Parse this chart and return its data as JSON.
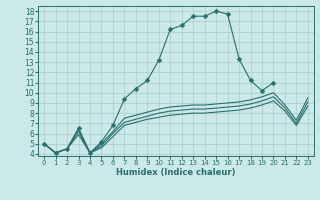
{
  "xlabel": "Humidex (Indice chaleur)",
  "background_color": "#cce9e9",
  "grid_color": "#aacccc",
  "line_color": "#2a6e6e",
  "xlim": [
    -0.5,
    23.5
  ],
  "ylim": [
    3.8,
    18.5
  ],
  "xticks": [
    0,
    1,
    2,
    3,
    4,
    5,
    6,
    7,
    8,
    9,
    10,
    11,
    12,
    13,
    14,
    15,
    16,
    17,
    18,
    19,
    20,
    21,
    22,
    23
  ],
  "yticks": [
    4,
    5,
    6,
    7,
    8,
    9,
    10,
    11,
    12,
    13,
    14,
    15,
    16,
    17,
    18
  ],
  "main_line": {
    "x": [
      0,
      1,
      2,
      3,
      4,
      5,
      6,
      7,
      8,
      9,
      10,
      11,
      12,
      13,
      14,
      15,
      16,
      17,
      18,
      19,
      20,
      21,
      22,
      23
    ],
    "y": [
      5.0,
      4.1,
      4.5,
      6.5,
      4.1,
      5.2,
      6.8,
      9.4,
      10.4,
      11.2,
      13.2,
      16.2,
      16.6,
      17.5,
      17.5,
      18.0,
      17.7,
      13.3,
      11.2,
      10.2,
      11.0,
      null,
      null,
      null
    ]
  },
  "flat_lines": [
    {
      "x": [
        0,
        1,
        2,
        3,
        4,
        5,
        6,
        7,
        8,
        9,
        10,
        11,
        12,
        13,
        14,
        15,
        16,
        17,
        18,
        19,
        20,
        21,
        22,
        23
      ],
      "y": [
        5.0,
        4.1,
        4.5,
        6.5,
        4.1,
        5.0,
        6.2,
        7.5,
        7.8,
        8.1,
        8.4,
        8.6,
        8.7,
        8.8,
        8.8,
        8.9,
        9.0,
        9.1,
        9.3,
        9.6,
        10.0,
        8.8,
        7.3,
        9.5
      ]
    },
    {
      "x": [
        0,
        1,
        2,
        3,
        4,
        5,
        6,
        7,
        8,
        9,
        10,
        11,
        12,
        13,
        14,
        15,
        16,
        17,
        18,
        19,
        20,
        21,
        22,
        23
      ],
      "y": [
        5.0,
        4.1,
        4.5,
        6.2,
        4.1,
        4.8,
        6.0,
        7.1,
        7.4,
        7.7,
        8.0,
        8.2,
        8.3,
        8.4,
        8.4,
        8.5,
        8.6,
        8.7,
        8.9,
        9.2,
        9.6,
        8.5,
        7.0,
        9.1
      ]
    },
    {
      "x": [
        0,
        1,
        2,
        3,
        4,
        5,
        6,
        7,
        8,
        9,
        10,
        11,
        12,
        13,
        14,
        15,
        16,
        17,
        18,
        19,
        20,
        21,
        22,
        23
      ],
      "y": [
        5.0,
        4.1,
        4.5,
        5.9,
        4.1,
        4.6,
        5.7,
        6.8,
        7.1,
        7.4,
        7.6,
        7.8,
        7.9,
        8.0,
        8.0,
        8.1,
        8.2,
        8.3,
        8.5,
        8.8,
        9.2,
        8.2,
        6.8,
        8.7
      ]
    }
  ]
}
